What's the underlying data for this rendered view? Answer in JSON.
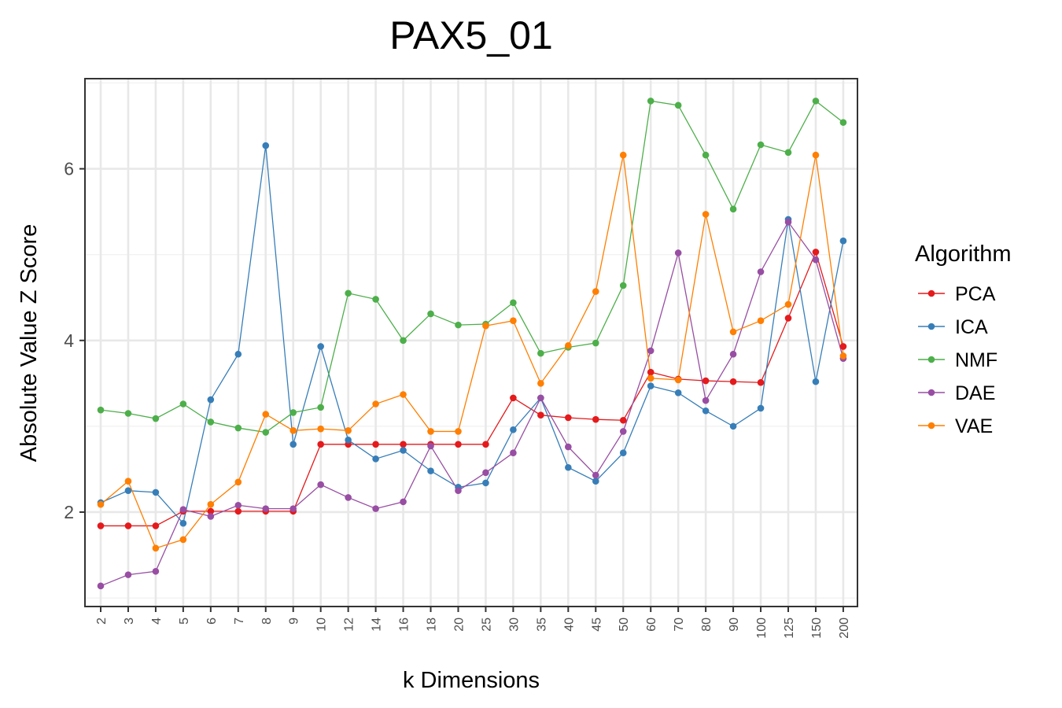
{
  "chart_data": {
    "type": "line",
    "title": "PAX5_01",
    "xlabel": "k Dimensions",
    "ylabel": "Absolute Value Z Score",
    "categories": [
      "2",
      "3",
      "4",
      "5",
      "6",
      "7",
      "8",
      "9",
      "10",
      "12",
      "14",
      "16",
      "18",
      "20",
      "25",
      "30",
      "35",
      "40",
      "45",
      "50",
      "60",
      "70",
      "80",
      "90",
      "100",
      "125",
      "150",
      "200"
    ],
    "yticks": [
      2,
      4,
      6
    ],
    "ylim": [
      0.9,
      7.05
    ],
    "grid": true,
    "legend": {
      "title": "Algorithm",
      "position": "right"
    },
    "series": [
      {
        "name": "PCA",
        "color": "#e41a1c",
        "values": [
          1.84,
          1.84,
          1.84,
          2.01,
          2.01,
          2.01,
          2.01,
          2.01,
          2.79,
          2.79,
          2.79,
          2.79,
          2.79,
          2.79,
          2.79,
          3.33,
          3.13,
          3.1,
          3.08,
          3.07,
          3.63,
          3.55,
          3.53,
          3.52,
          3.51,
          4.26,
          5.03,
          3.93
        ]
      },
      {
        "name": "ICA",
        "color": "#377eb8",
        "values": [
          2.11,
          2.25,
          2.23,
          1.87,
          3.31,
          3.84,
          6.27,
          2.79,
          3.93,
          2.84,
          2.62,
          2.72,
          2.48,
          2.29,
          2.34,
          2.96,
          3.33,
          2.52,
          2.36,
          2.69,
          3.47,
          3.39,
          3.18,
          3.0,
          3.21,
          5.41,
          3.52,
          5.16
        ]
      },
      {
        "name": "NMF",
        "color": "#4daf4a",
        "values": [
          3.19,
          3.15,
          3.09,
          3.26,
          3.05,
          2.98,
          2.93,
          3.16,
          3.22,
          4.55,
          4.48,
          4.0,
          4.31,
          4.18,
          4.19,
          4.44,
          3.85,
          3.92,
          3.97,
          4.64,
          6.79,
          6.74,
          6.16,
          5.53,
          6.28,
          6.19,
          6.79,
          6.54
        ]
      },
      {
        "name": "DAE",
        "color": "#984ea3",
        "values": [
          1.14,
          1.27,
          1.31,
          2.03,
          1.95,
          2.08,
          2.04,
          2.04,
          2.32,
          2.17,
          2.04,
          2.12,
          2.77,
          2.25,
          2.46,
          2.69,
          3.33,
          2.76,
          2.43,
          2.94,
          3.88,
          5.02,
          3.3,
          3.84,
          4.8,
          5.38,
          4.94,
          3.79
        ]
      },
      {
        "name": "VAE",
        "color": "#ff7f00",
        "values": [
          2.09,
          2.36,
          1.58,
          1.68,
          2.09,
          2.35,
          3.14,
          2.95,
          2.97,
          2.95,
          3.26,
          3.37,
          2.94,
          2.94,
          4.17,
          4.23,
          3.5,
          3.94,
          4.57,
          6.16,
          3.56,
          3.54,
          5.47,
          4.1,
          4.23,
          4.42,
          6.16,
          3.82
        ]
      }
    ]
  }
}
